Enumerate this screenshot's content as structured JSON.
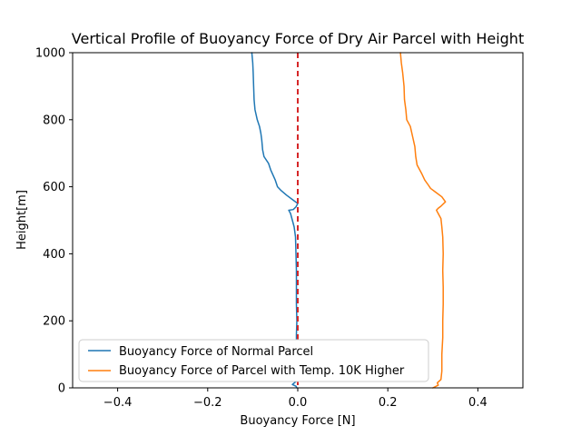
{
  "chart_data": {
    "type": "line",
    "title": "Vertical Profile of Buoyancy Force of Dry Air Parcel with Height",
    "xlabel": "Buoyancy Force [N]",
    "ylabel": "Height[m]",
    "xlim": [
      -0.5,
      0.5
    ],
    "ylim": [
      0,
      1000
    ],
    "xticks": [
      -0.4,
      -0.2,
      0.0,
      0.2,
      0.4
    ],
    "xtick_labels": [
      "−0.4",
      "−0.2",
      "0.0",
      "0.2",
      "0.4"
    ],
    "yticks": [
      0,
      200,
      400,
      600,
      800,
      1000
    ],
    "ytick_labels": [
      "0",
      "200",
      "400",
      "600",
      "800",
      "1000"
    ],
    "grid": false,
    "legend_position": "lower-left",
    "series": [
      {
        "name": "Buoyancy Force of Normal Parcel",
        "color": "#1f77b4",
        "points": [
          [
            -0.002,
            0
          ],
          [
            -0.004,
            5
          ],
          [
            -0.012,
            10
          ],
          [
            -0.003,
            20
          ],
          [
            -0.003,
            40
          ],
          [
            -0.002,
            80
          ],
          [
            -0.003,
            120
          ],
          [
            -0.003,
            160
          ],
          [
            -0.002,
            200
          ],
          [
            -0.003,
            250
          ],
          [
            -0.003,
            300
          ],
          [
            -0.003,
            350
          ],
          [
            -0.004,
            400
          ],
          [
            -0.005,
            450
          ],
          [
            -0.008,
            480
          ],
          [
            -0.012,
            500
          ],
          [
            -0.016,
            520
          ],
          [
            -0.02,
            530
          ],
          [
            -0.01,
            532
          ],
          [
            -0.004,
            540
          ],
          [
            0.0,
            550
          ],
          [
            -0.01,
            560
          ],
          [
            -0.025,
            575
          ],
          [
            -0.038,
            590
          ],
          [
            -0.045,
            600
          ],
          [
            -0.05,
            620
          ],
          [
            -0.06,
            650
          ],
          [
            -0.065,
            670
          ],
          [
            -0.075,
            690
          ],
          [
            -0.078,
            710
          ],
          [
            -0.08,
            740
          ],
          [
            -0.082,
            760
          ],
          [
            -0.085,
            780
          ],
          [
            -0.09,
            800
          ],
          [
            -0.095,
            830
          ],
          [
            -0.097,
            860
          ],
          [
            -0.098,
            900
          ],
          [
            -0.099,
            940
          ],
          [
            -0.1,
            970
          ],
          [
            -0.102,
            1000
          ]
        ]
      },
      {
        "name": "Buoyancy Force of Parcel with Temp. 10K Higher",
        "color": "#ff7f0e",
        "points": [
          [
            0.3,
            0
          ],
          [
            0.312,
            8
          ],
          [
            0.31,
            15
          ],
          [
            0.318,
            25
          ],
          [
            0.32,
            50
          ],
          [
            0.32,
            100
          ],
          [
            0.322,
            150
          ],
          [
            0.322,
            200
          ],
          [
            0.323,
            250
          ],
          [
            0.323,
            300
          ],
          [
            0.322,
            350
          ],
          [
            0.323,
            400
          ],
          [
            0.322,
            450
          ],
          [
            0.32,
            480
          ],
          [
            0.318,
            505
          ],
          [
            0.312,
            520
          ],
          [
            0.308,
            530
          ],
          [
            0.312,
            536
          ],
          [
            0.318,
            542
          ],
          [
            0.328,
            555
          ],
          [
            0.32,
            570
          ],
          [
            0.305,
            585
          ],
          [
            0.295,
            595
          ],
          [
            0.29,
            605
          ],
          [
            0.282,
            620
          ],
          [
            0.275,
            640
          ],
          [
            0.265,
            665
          ],
          [
            0.262,
            690
          ],
          [
            0.26,
            720
          ],
          [
            0.255,
            750
          ],
          [
            0.25,
            780
          ],
          [
            0.242,
            800
          ],
          [
            0.24,
            830
          ],
          [
            0.237,
            860
          ],
          [
            0.236,
            900
          ],
          [
            0.233,
            940
          ],
          [
            0.23,
            970
          ],
          [
            0.228,
            1000
          ]
        ]
      }
    ],
    "reference_line": {
      "x": 0.0,
      "color": "#d62728",
      "style": "dashed"
    }
  }
}
